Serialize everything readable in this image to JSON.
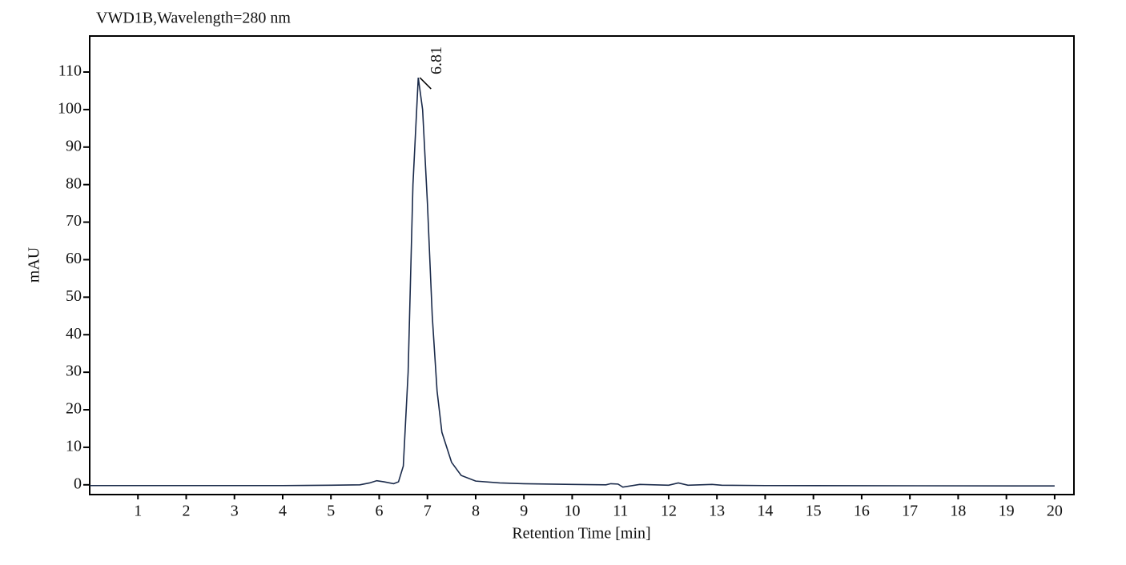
{
  "chart_data": {
    "type": "line",
    "title": "VWD1B,Wavelength=280 nm",
    "x_label": "Retention Time [min]",
    "y_label": "mAU",
    "x": [
      0,
      4,
      5,
      5.6,
      5.8,
      5.95,
      6.1,
      6.3,
      6.4,
      6.5,
      6.6,
      6.7,
      6.81,
      6.9,
      7.0,
      7.1,
      7.2,
      7.3,
      7.5,
      7.7,
      8.0,
      8.5,
      9,
      10,
      10.7,
      10.8,
      10.95,
      11.05,
      11.4,
      12.0,
      12.2,
      12.4,
      12.9,
      13.1,
      14,
      20
    ],
    "series": [
      {
        "name": "VWD1B",
        "color": "#1a2a4a",
        "values": [
          -0.2,
          -0.2,
          -0.1,
          0,
          0.5,
          1.1,
          0.8,
          0.3,
          0.8,
          5,
          30,
          80,
          108.5,
          100,
          75,
          45,
          25,
          14,
          6,
          2.5,
          1.0,
          0.5,
          0.3,
          0.1,
          0,
          0.3,
          0.2,
          -0.6,
          0.1,
          -0.1,
          0.5,
          -0.1,
          0.1,
          -0.1,
          -0.2,
          -0.3
        ]
      }
    ],
    "annotations": [
      {
        "x": 6.81,
        "y": 108.5,
        "text": "6.81"
      }
    ],
    "xlim": [
      0,
      20.4
    ],
    "xticks": [
      1,
      2,
      3,
      4,
      5,
      6,
      7,
      8,
      9,
      10,
      11,
      12,
      13,
      14,
      15,
      16,
      17,
      18,
      19,
      20
    ],
    "ylim": [
      -2.6,
      119.6
    ],
    "yticks": [
      0,
      10,
      20,
      30,
      40,
      50,
      60,
      70,
      80,
      90,
      100,
      110
    ],
    "grid": false
  }
}
